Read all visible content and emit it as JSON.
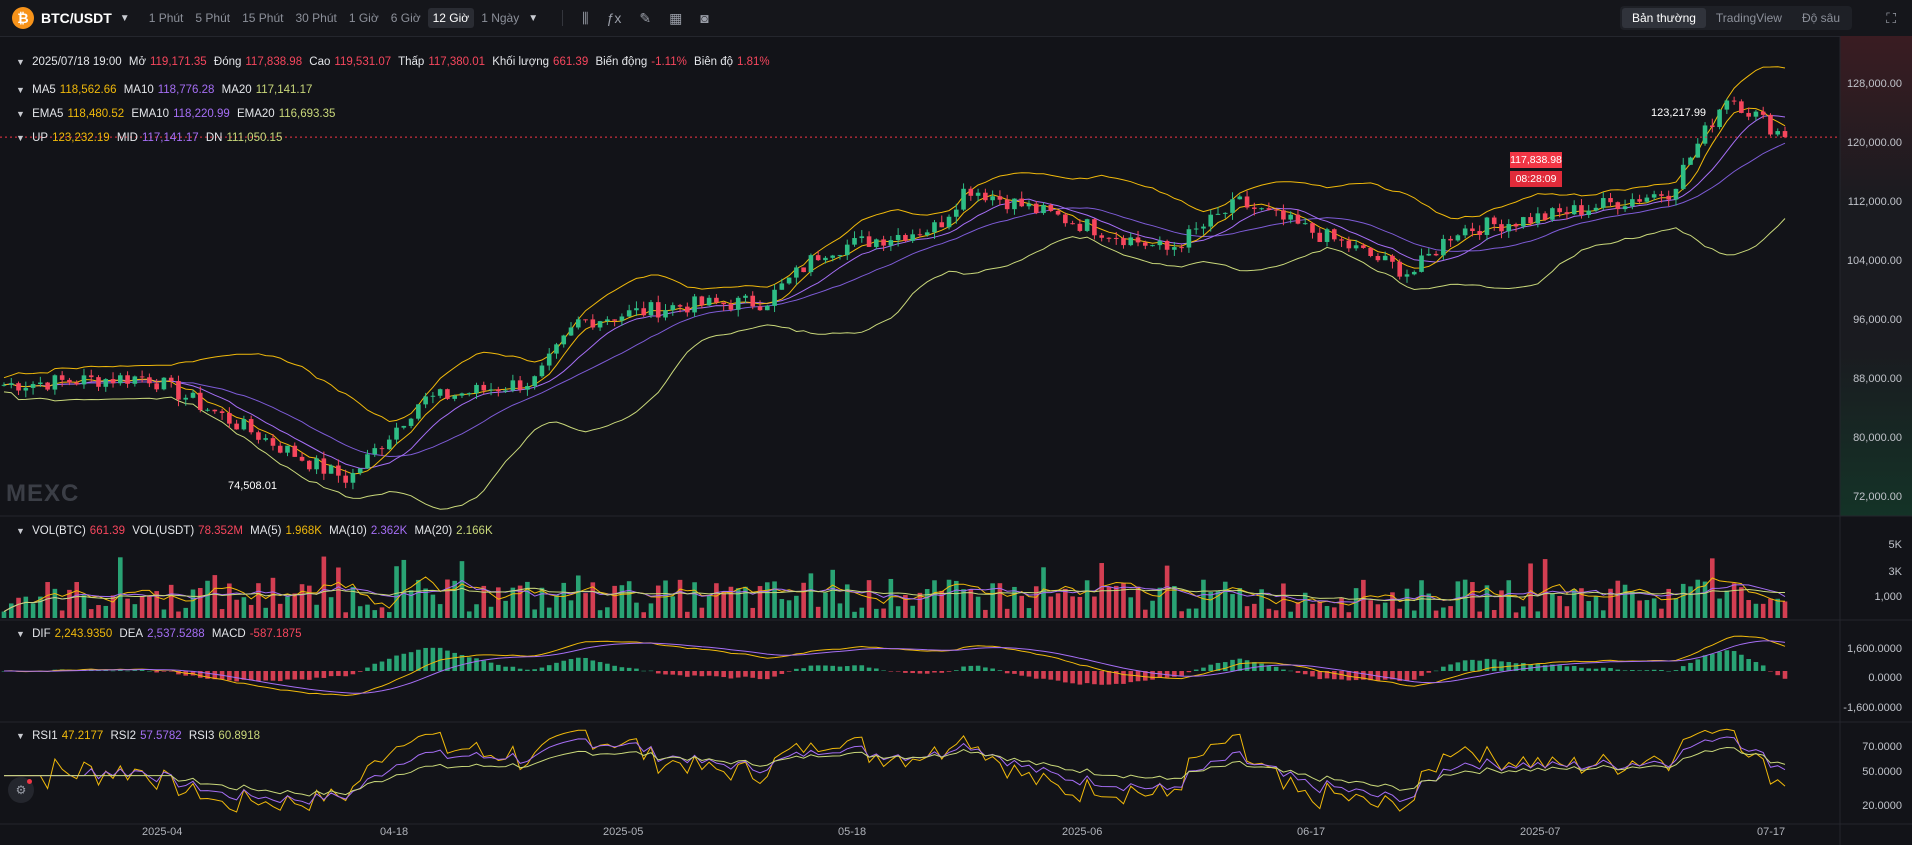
{
  "header": {
    "pair": "BTC/USDT",
    "timeframes": [
      "1 Phút",
      "5 Phút",
      "15 Phút",
      "30 Phút",
      "1 Giờ",
      "6 Giờ",
      "12 Giờ",
      "1 Ngày"
    ],
    "active_timeframe": "12 Giờ",
    "modes": [
      "Bản thường",
      "TradingView",
      "Độ sâu"
    ],
    "active_mode": "Bản thường"
  },
  "ohlc": {
    "date": "2025/07/18 19:00",
    "open_label": "Mở",
    "open": "119,171.35",
    "close_label": "Đóng",
    "close": "117,838.98",
    "high_label": "Cao",
    "high": "119,531.07",
    "low_label": "Thấp",
    "low": "117,380.01",
    "volume_label": "Khối lượng",
    "volume": "661.39",
    "change_label": "Biến động",
    "change": "-1.11%",
    "amplitude_label": "Biên độ",
    "amplitude": "1.81%"
  },
  "ma": {
    "ma5_label": "MA5",
    "ma5": "118,562.66",
    "ma10_label": "MA10",
    "ma10": "118,776.28",
    "ma20_label": "MA20",
    "ma20": "117,141.17"
  },
  "ema": {
    "ema5_label": "EMA5",
    "ema5": "118,480.52",
    "ema10_label": "EMA10",
    "ema10": "118,220.99",
    "ema20_label": "EMA20",
    "ema20": "116,693.35"
  },
  "boll": {
    "up_label": "UP",
    "up": "123,232.19",
    "mid_label": "MID",
    "mid": "117,141.17",
    "dn_label": "DN",
    "dn": "111,050.15"
  },
  "vol": {
    "btc_label": "VOL(BTC)",
    "btc": "661.39",
    "usdt_label": "VOL(USDT)",
    "usdt": "78.352M",
    "ma5_label": "MA(5)",
    "ma5": "1.968K",
    "ma10_label": "MA(10)",
    "ma10": "2.362K",
    "ma20_label": "MA(20)",
    "ma20": "2.166K"
  },
  "macd": {
    "dif_label": "DIF",
    "dif": "2,243.9350",
    "dea_label": "DEA",
    "dea": "2,537.5288",
    "macd_label": "MACD",
    "macd": "-587.1875"
  },
  "rsi": {
    "rsi1_label": "RSI1",
    "rsi1": "47.2177",
    "rsi2_label": "RSI2",
    "rsi2": "57.5782",
    "rsi3_label": "RSI3",
    "rsi3": "60.8918"
  },
  "price_axis": [
    "128,000.00",
    "120,000.00",
    "112,000.00",
    "104,000.00",
    "96,000.00",
    "88,000.00",
    "80,000.00",
    "72,000.00"
  ],
  "vol_axis": [
    "5K",
    "3K",
    "1,000"
  ],
  "macd_axis": [
    "1,600.0000",
    "0.0000",
    "-1,600.0000"
  ],
  "rsi_axis": [
    "70.0000",
    "50.0000",
    "20.0000"
  ],
  "date_axis": [
    "2025-04",
    "04-18",
    "2025-05",
    "05-18",
    "2025-06",
    "06-17",
    "2025-07",
    "07-17"
  ],
  "last_price": "117,838.98",
  "countdown": "08:28:09",
  "annotations": {
    "high": "123,217.99",
    "low": "74,508.01"
  },
  "watermark": "MEXC",
  "colors": {
    "up": "#2ebd85",
    "down": "#f6465d",
    "ma5": "#f0b90b",
    "ma10": "#a56ef5",
    "ma20": "#c9d87a",
    "price_line": "#f23645"
  },
  "chart_data": {
    "type": "candlestick",
    "x_range": [
      "2025-03-16",
      "2025-07-18"
    ],
    "price_ylim": [
      70000,
      130000
    ],
    "key_points": [
      {
        "x": "2025-03-16",
        "close": 86500
      },
      {
        "x": "2025-03-26",
        "close": 87500
      },
      {
        "x": "2025-04-07",
        "close": 76000
      },
      {
        "x": "2025-04-09",
        "close": 74508
      },
      {
        "x": "2025-04-14",
        "close": 84500
      },
      {
        "x": "2025-04-22",
        "close": 87000
      },
      {
        "x": "2025-04-25",
        "close": 94500
      },
      {
        "x": "2025-05-02",
        "close": 96500
      },
      {
        "x": "2025-05-08",
        "close": 97000
      },
      {
        "x": "2025-05-12",
        "close": 103500
      },
      {
        "x": "2025-05-20",
        "close": 106500
      },
      {
        "x": "2025-05-22",
        "close": 111500
      },
      {
        "x": "2025-05-27",
        "close": 108500
      },
      {
        "x": "2025-06-05",
        "close": 103500
      },
      {
        "x": "2025-06-10",
        "close": 109500
      },
      {
        "x": "2025-06-17",
        "close": 104500
      },
      {
        "x": "2025-06-22",
        "close": 100500
      },
      {
        "x": "2025-06-25",
        "close": 106000
      },
      {
        "x": "2025-07-02",
        "close": 108000
      },
      {
        "x": "2025-07-10",
        "close": 111000
      },
      {
        "x": "2025-07-14",
        "close": 123218
      },
      {
        "x": "2025-07-18",
        "close": 117839
      }
    ]
  }
}
